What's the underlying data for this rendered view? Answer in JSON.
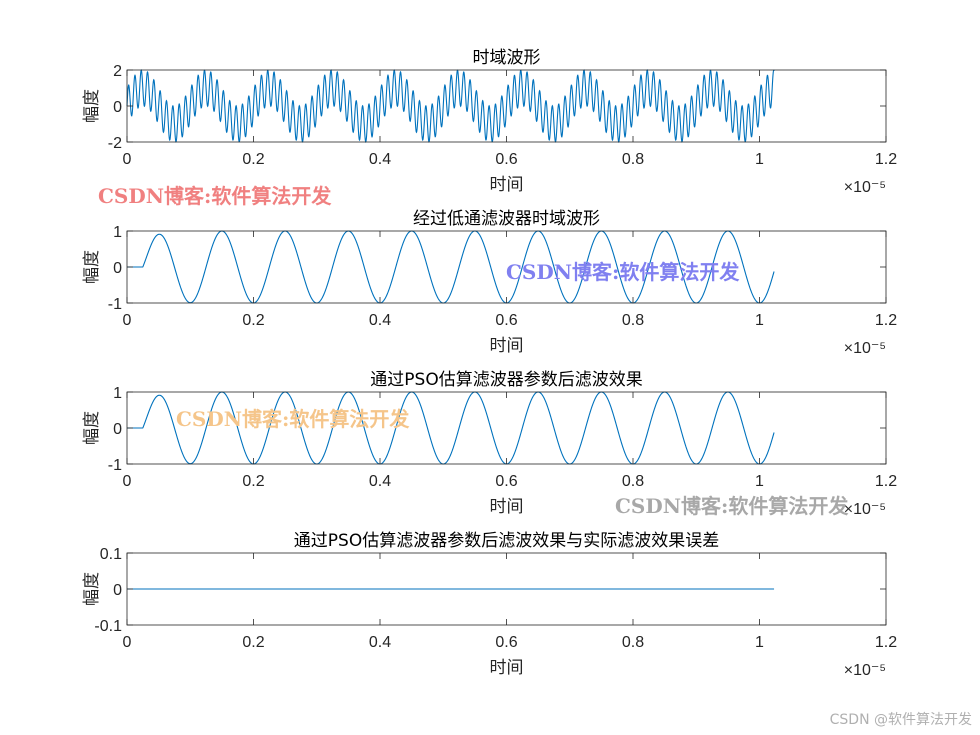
{
  "chart_data": [
    {
      "type": "line",
      "title": "时域波形",
      "xlabel": "时间",
      "ylabel": "幅度",
      "x_exponent_label": "×10⁻⁵",
      "xlim": [
        0,
        1.2e-05
      ],
      "ylim": [
        -2,
        2
      ],
      "xticks": [
        "0",
        "0.2",
        "0.4",
        "0.6",
        "0.8",
        "1",
        "1.2"
      ],
      "yticks": [
        "-2",
        "0",
        "2"
      ],
      "grid": false,
      "series": [
        {
          "components": [
            {
              "amplitude": 1.0,
              "frequency_hz": 1000000,
              "phase": 0
            },
            {
              "amplitude": 1.0,
              "frequency_hz": 10000000,
              "phase": 0
            }
          ],
          "x_start": 0,
          "x_end": 1.023e-05,
          "color": "#0072BD"
        }
      ]
    },
    {
      "type": "line",
      "title": "经过低通滤波器时域波形",
      "xlabel": "时间",
      "ylabel": "幅度",
      "x_exponent_label": "×10⁻⁵",
      "xlim": [
        0,
        1.2e-05
      ],
      "ylim": [
        -1,
        1
      ],
      "xticks": [
        "0",
        "0.2",
        "0.4",
        "0.6",
        "0.8",
        "1",
        "1.2"
      ],
      "yticks": [
        "-1",
        "0",
        "1"
      ],
      "grid": false,
      "series": [
        {
          "components": [
            {
              "amplitude": 1.0,
              "frequency_hz": 1000000,
              "phase": 0
            }
          ],
          "x_start": 0,
          "x_end": 1.023e-05,
          "filter_delay_s": 2.5e-07,
          "transient_s": 6e-07,
          "color": "#0072BD"
        }
      ]
    },
    {
      "type": "line",
      "title": "通过PSO估算滤波器参数后滤波效果",
      "xlabel": "时间",
      "ylabel": "幅度",
      "x_exponent_label": "×10⁻⁵",
      "xlim": [
        0,
        1.2e-05
      ],
      "ylim": [
        -1,
        1
      ],
      "xticks": [
        "0",
        "0.2",
        "0.4",
        "0.6",
        "0.8",
        "1",
        "1.2"
      ],
      "yticks": [
        "-1",
        "0",
        "1"
      ],
      "grid": false,
      "series": [
        {
          "components": [
            {
              "amplitude": 1.0,
              "frequency_hz": 1000000,
              "phase": 0
            }
          ],
          "x_start": 0,
          "x_end": 1.023e-05,
          "filter_delay_s": 2.5e-07,
          "transient_s": 6e-07,
          "color": "#0072BD"
        }
      ]
    },
    {
      "type": "line",
      "title": "通过PSO估算滤波器参数后滤波效果与实际滤波效果误差",
      "xlabel": "时间",
      "ylabel": "幅度",
      "x_exponent_label": "×10⁻⁵",
      "xlim": [
        0,
        1.2e-05
      ],
      "ylim": [
        -0.1,
        0.1
      ],
      "xticks": [
        "0",
        "0.2",
        "0.4",
        "0.6",
        "0.8",
        "1",
        "1.2"
      ],
      "yticks": [
        "-0.1",
        "0",
        "0.1"
      ],
      "grid": false,
      "series": [
        {
          "components": [],
          "constant": 0,
          "x_start": 0,
          "x_end": 1.023e-05,
          "color": "#0072BD"
        }
      ]
    }
  ],
  "watermarks": [
    {
      "text": "CSDN博客:软件算法开发",
      "color": "#f08080"
    },
    {
      "text": "CSDN博客:软件算法开发",
      "color": "#8080f0"
    },
    {
      "text": "CSDN博客:软件算法开发",
      "color": "#f5c58a"
    },
    {
      "text": "CSDN博客:软件算法开发",
      "color": "#a8a8a8"
    }
  ],
  "footer": "CSDN @软件算法开发"
}
